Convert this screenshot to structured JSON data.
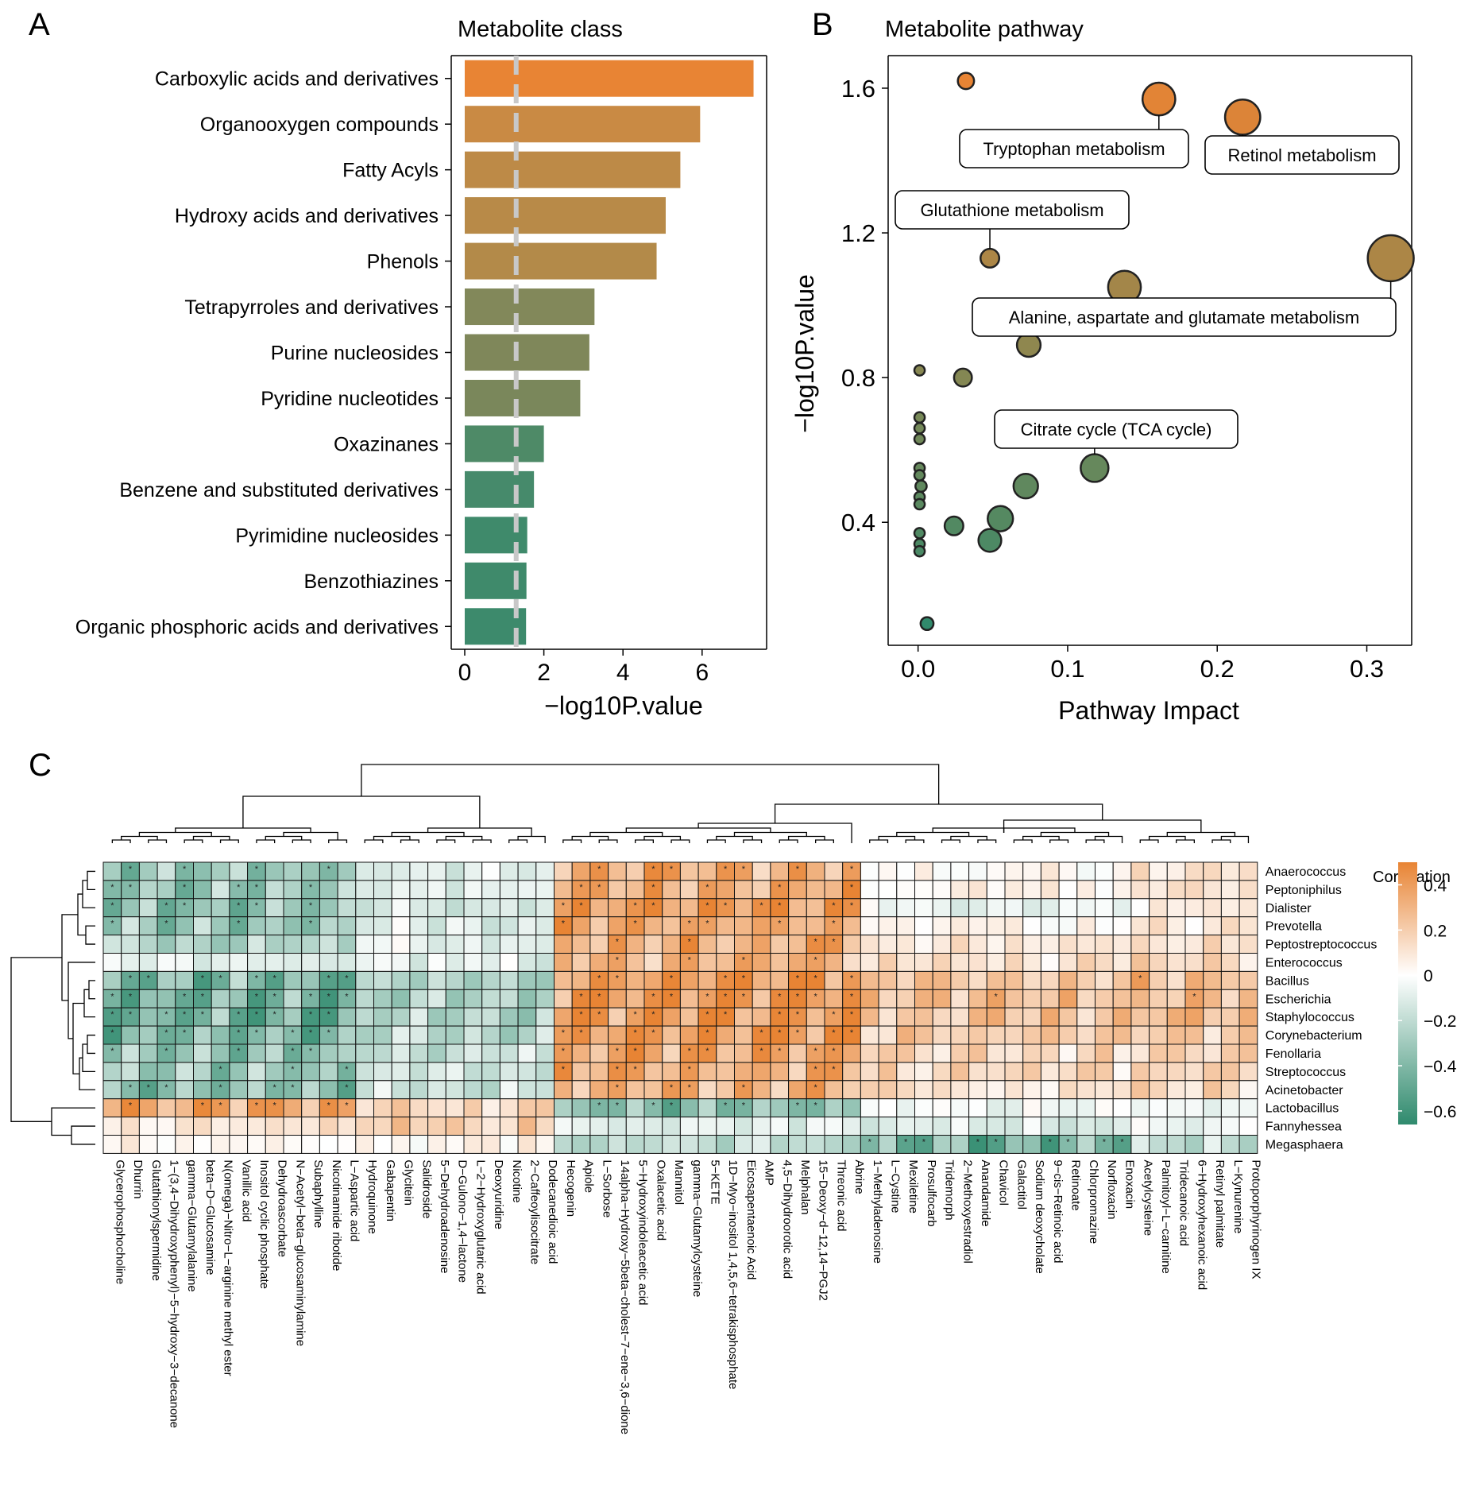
{
  "chart_data": [
    {
      "panel": "A",
      "type": "bar",
      "orientation": "horizontal",
      "title": "Metabolite class",
      "xlabel": "−log10P.value",
      "xlim": [
        0,
        7.6
      ],
      "xticks": [
        0,
        2,
        4,
        6
      ],
      "threshold": 1.3,
      "categories": [
        "Carboxylic acids and derivatives",
        "Organooxygen compounds",
        "Fatty Acyls",
        "Hydroxy acids and derivatives",
        "Phenols",
        "Tetrapyrroles and derivatives",
        "Purine nucleosides",
        "Pyridine nucleotides",
        "Oxazinanes",
        "Benzene and substituted derivatives",
        "Pyrimidine nucleosides",
        "Benzothiazines",
        "Organic phosphoric acids and derivatives"
      ],
      "values": [
        7.3,
        5.95,
        5.45,
        5.08,
        4.85,
        3.28,
        3.15,
        2.92,
        2.0,
        1.75,
        1.58,
        1.56,
        1.55
      ],
      "colors": [
        "#e88434",
        "#c98a44",
        "#bd8a47",
        "#b88a48",
        "#b38a49",
        "#82885a",
        "#7f875a",
        "#7a875b",
        "#4e8a67",
        "#468a6b",
        "#3f8a6b",
        "#3f8a6b",
        "#3d8a6c"
      ]
    },
    {
      "panel": "B",
      "type": "scatter",
      "title": "Metabolite pathway",
      "xlabel": "Pathway Impact",
      "ylabel": "−log10P.value",
      "xlim": [
        -0.02,
        0.33
      ],
      "ylim": [
        0.06,
        1.69
      ],
      "xticks": [
        "0.0",
        "0.1",
        "0.2",
        "0.3"
      ],
      "yticks": [
        "0.4",
        "0.8",
        "1.2",
        "1.6"
      ],
      "points": [
        {
          "x": 0.032,
          "y": 1.62,
          "size": 1
        },
        {
          "x": 0.161,
          "y": 1.57,
          "size": 3
        },
        {
          "x": 0.217,
          "y": 1.52,
          "size": 3.3
        },
        {
          "x": 0.316,
          "y": 1.13,
          "size": 4.6
        },
        {
          "x": 0.048,
          "y": 1.13,
          "size": 1.3
        },
        {
          "x": 0.138,
          "y": 1.05,
          "size": 3
        },
        {
          "x": 0.074,
          "y": 0.89,
          "size": 1.9
        },
        {
          "x": 0.03,
          "y": 0.8,
          "size": 1.2
        },
        {
          "x": 0.001,
          "y": 0.82,
          "size": 0.3
        },
        {
          "x": 0.001,
          "y": 0.69,
          "size": 0.3
        },
        {
          "x": 0.001,
          "y": 0.66,
          "size": 0.3
        },
        {
          "x": 0.001,
          "y": 0.63,
          "size": 0.3
        },
        {
          "x": 0.001,
          "y": 0.55,
          "size": 0.3
        },
        {
          "x": 0.001,
          "y": 0.53,
          "size": 0.3
        },
        {
          "x": 0.002,
          "y": 0.5,
          "size": 0.4
        },
        {
          "x": 0.001,
          "y": 0.47,
          "size": 0.3
        },
        {
          "x": 0.001,
          "y": 0.45,
          "size": 0.3
        },
        {
          "x": 0.001,
          "y": 0.37,
          "size": 0.3
        },
        {
          "x": 0.001,
          "y": 0.34,
          "size": 0.3
        },
        {
          "x": 0.001,
          "y": 0.32,
          "size": 0.3
        },
        {
          "x": 0.118,
          "y": 0.55,
          "size": 2.4
        },
        {
          "x": 0.072,
          "y": 0.5,
          "size": 2
        },
        {
          "x": 0.055,
          "y": 0.41,
          "size": 2.1
        },
        {
          "x": 0.024,
          "y": 0.39,
          "size": 1.3
        },
        {
          "x": 0.048,
          "y": 0.35,
          "size": 1.8
        },
        {
          "x": 0.006,
          "y": 0.12,
          "size": 0.6
        }
      ],
      "annotations": [
        {
          "text": "Tryptophan metabolism",
          "point": 1
        },
        {
          "text": "Retinol metabolism",
          "point": 2
        },
        {
          "text": "Glutathione metabolism",
          "point": 4
        },
        {
          "text": "Alanine, aspartate and glutamate metabolism",
          "point": 3
        },
        {
          "text": "Citrate cycle (TCA cycle)",
          "point": 20
        }
      ],
      "color_low": "#2f8a6d",
      "color_high": "#e88434"
    },
    {
      "panel": "C",
      "type": "heatmap",
      "legend_title": "Correlation",
      "legend_ticks": [
        "0.4",
        "0.2",
        "0",
        "−0.2",
        "−0.4",
        "−0.6"
      ],
      "legend_range": [
        -0.66,
        0.5
      ],
      "rows": [
        "Anaerococcus",
        "Peptoniphilus",
        "Dialister",
        "Prevotella",
        "Peptostreptococcus",
        "Enterococcus",
        "Bacillus",
        "Escherichia",
        "Staphylococcus",
        "Corynebacterium",
        "Fenollaria",
        "Streptococcus",
        "Acinetobacter",
        "Lactobacillus",
        "Fannyhessea",
        "Megasphaera"
      ],
      "columns": [
        "Glycerophosphocholine",
        "Dhurrin",
        "Glutathionylspermidine",
        "1−(3,4−Dihydroxyphenyl)−5−hydroxy−3−decanone",
        "gamma−Glutamylalanine",
        "beta−D−Glucosamine",
        "N(omega)−Nitro−L−arginine methyl ester",
        "Vanillic acid",
        "Inositol cyclic phosphate",
        "Dehydroascorbate",
        "N−Acetyl−beta−glucosaminylamine",
        "Subaphylline",
        "Nicotinamide ribotide",
        "L−Aspartic acid",
        "Hydroquinone",
        "Gabapentin",
        "Glycitein",
        "Salidroside",
        "5−Dehydroadenosine",
        "D−Gulono−1,4−lactone",
        "L−2−Hydroxyglutaric acid",
        "Deoxyuridine",
        "Nicotine",
        "2−Caffeoylisocitrate",
        "Dodecanedioic acid",
        "Hecogenin",
        "Apiole",
        "L−Sorbose",
        "14alpha−Hydroxy−5beta−cholest−7−ene−3,6−dione",
        "5−Hydroxyindoleacetic acid",
        "Oxalacetic acid",
        "Mannitol",
        "gamma−Glutamylcysteine",
        "5−KETE",
        "1D−Myo−inositol 1,4,5,6−tetrakisphosphate",
        "Eicosapentaenoic Acid",
        "AMP",
        "4,5−Dihydroorotic acid",
        "Melphalan",
        "15−Deoxy−d−12,14−PGJ2",
        "Threonic acid",
        "Abrine",
        "1−Methyladenosine",
        "L−Cystine",
        "Mexiletine",
        "Prosulfocarb",
        "Tridemorph",
        "2−Methoxyestradiol",
        "Anandamide",
        "Chavicol",
        "Galactitol",
        "Sodium deoxycholate",
        "9−cis−Retinoic acid",
        "Retinoate",
        "Chlorpromazine",
        "Norfloxacin",
        "Enoxacin",
        "Acetylcysteine",
        "Palmitoyl−L−carnitine",
        "Tridecanoic acid",
        "6−Hydroxyhexanoic acid",
        "Retinyl palmitate",
        "L−Kynurenine",
        "Protoporphyrinogen IX"
      ],
      "column_groups": [
        0,
        0,
        0,
        0,
        0,
        0,
        0,
        0,
        0,
        0,
        0,
        0,
        0,
        0,
        1,
        1,
        1,
        1,
        1,
        1,
        1,
        1,
        1,
        1,
        1,
        2,
        2,
        2,
        2,
        2,
        2,
        2,
        2,
        2,
        2,
        2,
        2,
        2,
        2,
        2,
        2,
        2,
        3,
        3,
        3,
        3,
        3,
        3,
        3,
        3,
        3,
        3,
        3,
        3,
        3,
        3,
        3,
        4,
        4,
        4,
        4,
        4,
        4,
        4
      ],
      "group_profiles": [
        [
          -0.4,
          -0.4,
          -0.45,
          -0.4,
          -0.3,
          -0.12,
          -0.5,
          -0.55,
          -0.55,
          -0.5,
          -0.45,
          -0.4,
          -0.45,
          0.45,
          0.1,
          0.04
        ],
        [
          -0.12,
          -0.12,
          -0.15,
          -0.12,
          -0.08,
          -0.1,
          -0.28,
          -0.3,
          -0.32,
          -0.25,
          -0.22,
          -0.18,
          -0.2,
          0.18,
          0.22,
          0.05
        ],
        [
          0.42,
          0.42,
          0.48,
          0.42,
          0.4,
          0.38,
          0.5,
          0.52,
          0.52,
          0.5,
          0.45,
          0.4,
          0.38,
          -0.45,
          -0.1,
          -0.25
        ],
        [
          0.05,
          0.05,
          -0.08,
          0.05,
          0.12,
          0.15,
          0.3,
          0.3,
          0.3,
          0.25,
          0.2,
          0.18,
          0.15,
          -0.05,
          -0.15,
          -0.55
        ],
        [
          0.15,
          0.15,
          0.12,
          0.12,
          0.15,
          0.2,
          0.32,
          0.32,
          0.35,
          0.28,
          0.22,
          0.2,
          0.18,
          -0.08,
          -0.05,
          -0.25
        ]
      ]
    }
  ],
  "panel_labels": {
    "a": "A",
    "b": "B",
    "c": "C"
  }
}
